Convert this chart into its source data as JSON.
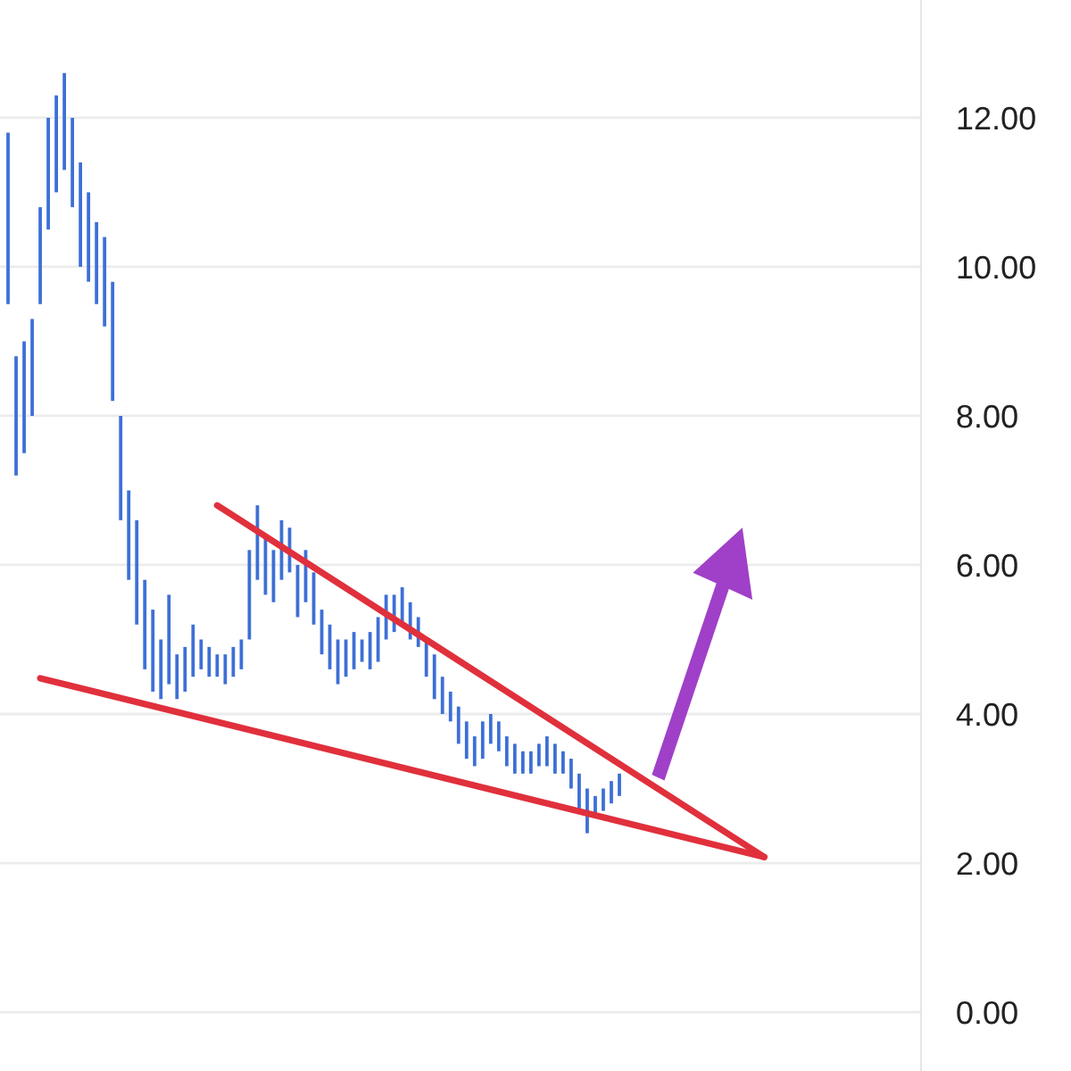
{
  "chart_data": {
    "type": "bar",
    "categories": [
      null,
      null,
      null,
      null,
      null,
      null,
      null,
      null,
      null,
      null,
      null,
      null,
      null,
      null,
      null,
      null,
      null,
      null,
      null,
      null,
      null,
      null,
      null,
      null,
      null,
      null,
      null,
      null,
      null,
      null,
      null,
      null,
      null,
      null,
      null,
      null,
      null,
      null,
      null,
      null,
      null,
      null,
      null,
      null,
      null,
      null,
      null,
      null,
      null,
      null,
      null,
      null,
      null,
      null,
      null,
      null,
      null,
      null,
      null,
      null,
      null,
      null,
      null,
      null,
      null,
      null,
      null,
      null,
      null,
      null,
      null,
      null,
      null,
      null,
      null,
      null,
      null,
      null,
      null,
      null,
      null,
      null,
      null,
      null,
      null,
      null,
      null,
      null,
      null,
      null,
      null,
      null,
      null,
      null,
      null,
      null,
      null,
      null,
      null,
      null,
      null,
      null,
      null,
      null,
      null,
      null,
      null,
      null,
      null,
      null,
      null,
      null,
      null,
      null
    ],
    "series": [
      {
        "color": "#3d6fd6",
        "base": [
          9.5,
          7.2,
          7.5,
          8.0,
          9.5,
          10.5,
          11.0,
          11.3,
          10.8,
          10.0,
          9.8,
          9.5,
          9.2,
          8.2,
          6.6,
          5.8,
          5.2,
          4.6,
          4.3,
          4.2,
          4.4,
          4.2,
          4.3,
          4.5,
          4.6,
          4.5,
          4.5,
          4.4,
          4.5,
          4.6,
          5.0,
          5.8,
          5.6,
          5.5,
          5.8,
          5.9,
          5.3,
          5.5,
          5.2,
          4.8,
          4.6,
          4.4,
          4.5,
          4.6,
          4.7,
          4.6,
          4.7,
          5.0,
          5.1,
          5.2,
          5.0,
          4.9,
          4.5,
          4.2,
          4.0,
          3.9,
          3.6,
          3.4,
          3.3,
          3.4,
          3.6,
          3.5,
          3.3,
          3.2,
          3.2,
          3.2,
          3.3,
          3.3,
          3.2,
          3.2,
          3.0,
          2.7,
          2.4,
          2.6,
          2.7,
          2.8,
          2.9,
          null,
          null,
          null,
          null,
          null,
          null,
          null,
          null,
          null,
          null,
          null,
          null,
          null,
          null,
          null,
          null,
          null,
          null,
          null,
          null,
          null,
          null,
          null,
          null,
          null,
          null,
          null,
          null,
          null,
          null,
          null,
          null,
          null,
          null,
          null,
          null,
          null
        ],
        "values": [
          2.3,
          1.6,
          1.5,
          1.3,
          1.3,
          1.5,
          1.3,
          1.3,
          1.2,
          1.4,
          1.2,
          1.1,
          1.2,
          1.6,
          1.4,
          1.2,
          1.4,
          1.2,
          1.1,
          0.8,
          1.2,
          0.6,
          0.6,
          0.7,
          0.4,
          0.4,
          0.3,
          0.4,
          0.4,
          0.4,
          1.2,
          1.0,
          0.8,
          0.7,
          0.8,
          0.6,
          0.7,
          0.7,
          0.7,
          0.6,
          0.6,
          0.6,
          0.5,
          0.5,
          0.3,
          0.5,
          0.6,
          0.6,
          0.5,
          0.5,
          0.5,
          0.4,
          0.5,
          0.6,
          0.5,
          0.4,
          0.5,
          0.5,
          0.4,
          0.5,
          0.4,
          0.4,
          0.4,
          0.4,
          0.3,
          0.3,
          0.3,
          0.4,
          0.4,
          0.3,
          0.4,
          0.5,
          0.6,
          0.3,
          0.3,
          0.3,
          0.3,
          null,
          null,
          null,
          null,
          null,
          null,
          null,
          null,
          null,
          null,
          null,
          null,
          null,
          null,
          null,
          null,
          null,
          null,
          null,
          null,
          null,
          null,
          null,
          null,
          null,
          null,
          null,
          null,
          null,
          null,
          null,
          null,
          null,
          null,
          null,
          null,
          null
        ]
      },
      {
        "type": "line",
        "color": "#e0303c",
        "values": [
          null,
          null,
          null,
          null,
          null,
          null,
          null,
          null,
          null,
          null,
          null,
          null,
          null,
          null,
          null,
          null,
          null,
          null,
          null,
          null,
          null,
          null,
          null,
          null,
          null,
          null,
          6.8,
          null,
          null,
          null,
          null,
          null,
          null,
          null,
          null,
          null,
          null,
          null,
          null,
          null,
          null,
          null,
          null,
          null,
          null,
          null,
          null,
          null,
          null,
          null,
          null,
          null,
          null,
          null,
          null,
          null,
          null,
          null,
          null,
          null,
          null,
          null,
          null,
          null,
          null,
          null,
          null,
          null,
          null,
          null,
          null,
          null,
          null,
          null,
          null,
          null,
          null,
          null,
          null,
          null,
          null,
          null,
          null,
          null,
          null,
          null,
          null,
          null,
          null,
          null,
          null,
          null,
          null,
          null,
          2.08,
          null,
          null,
          null,
          null,
          null,
          null,
          null,
          null,
          null,
          null,
          null,
          null,
          null,
          null,
          null,
          null,
          null,
          null,
          null
        ]
      },
      {
        "type": "line",
        "color": "#e0303c",
        "values": [
          null,
          null,
          null,
          null,
          4.48,
          null,
          null,
          null,
          null,
          null,
          null,
          null,
          null,
          null,
          null,
          null,
          null,
          null,
          null,
          null,
          null,
          null,
          null,
          null,
          null,
          null,
          null,
          null,
          null,
          null,
          null,
          null,
          null,
          null,
          null,
          null,
          null,
          null,
          null,
          null,
          null,
          null,
          null,
          null,
          null,
          null,
          null,
          null,
          null,
          null,
          null,
          null,
          null,
          null,
          null,
          null,
          null,
          null,
          null,
          null,
          null,
          null,
          null,
          null,
          null,
          null,
          null,
          null,
          null,
          null,
          null,
          null,
          null,
          null,
          null,
          null,
          null,
          null,
          null,
          null,
          null,
          null,
          null,
          null,
          null,
          null,
          null,
          null,
          null,
          null,
          null,
          null,
          null,
          null,
          2.08,
          null,
          null,
          null,
          null,
          null,
          null,
          null,
          null,
          null,
          null,
          null,
          null,
          null,
          null,
          null,
          null,
          null,
          null,
          null
        ]
      }
    ],
    "ylim": [
      -0.79,
      13.58
    ],
    "yticks": [
      {
        "value": 0,
        "label": "0.00"
      },
      {
        "value": 2,
        "label": "2.00"
      },
      {
        "value": 4,
        "label": "4.00"
      },
      {
        "value": 6,
        "label": "6.00"
      },
      {
        "value": 8,
        "label": "8.00"
      },
      {
        "value": 10,
        "label": "10.00"
      },
      {
        "value": 12,
        "label": "12.00"
      }
    ],
    "tick_labels": "y",
    "grid": "y"
  }
}
